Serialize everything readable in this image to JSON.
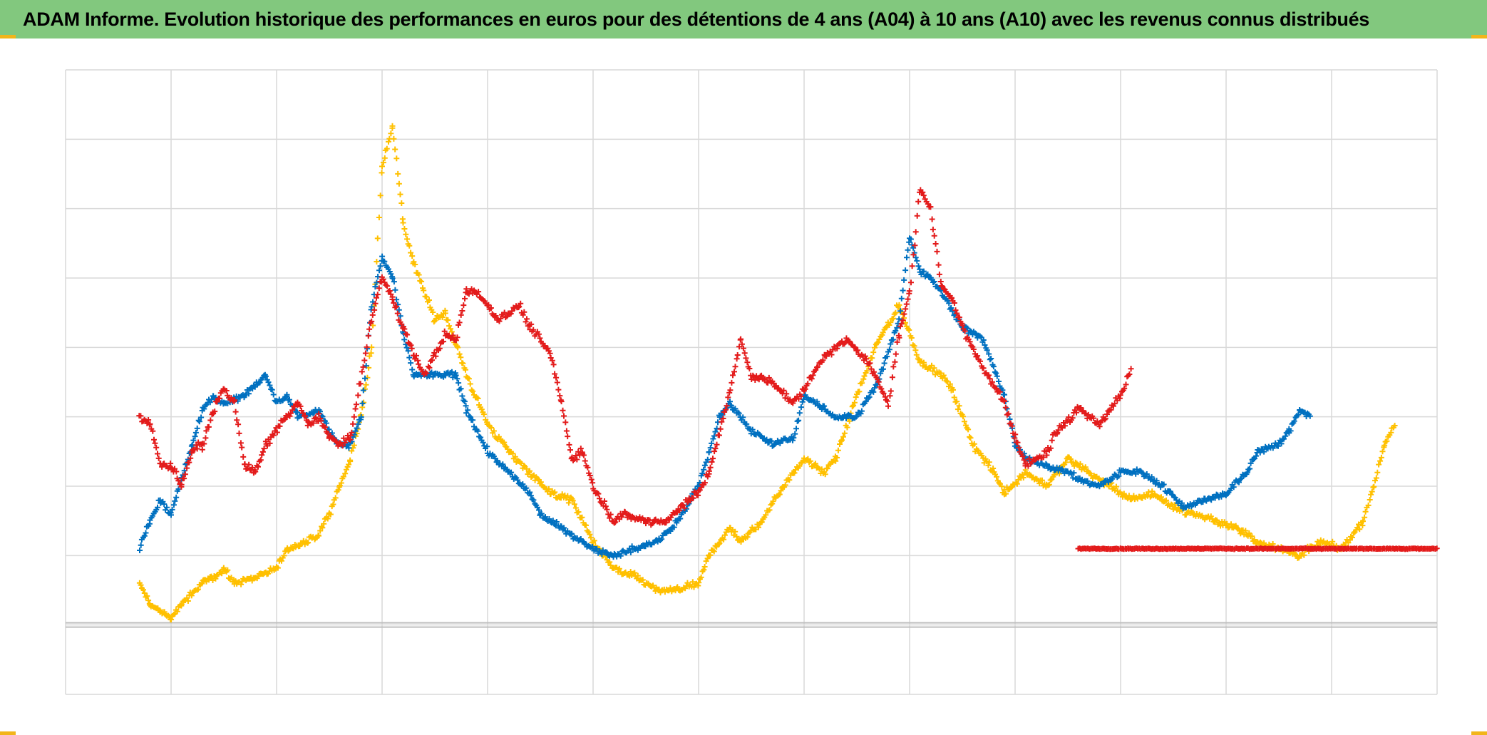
{
  "title": "ADAM Informe. Evolution historique des performances en euros pour des détentions de 4 ans (A04) à 10 ans (A10) avec les revenus connus distribués",
  "colors": {
    "title_bar": "#82c87e",
    "corner_accent": "#f2b51a",
    "grid": "#d9d9d9",
    "baseline": "#bfbfbf"
  },
  "chart_data": {
    "type": "scatter",
    "title": "ADAM Informe. Evolution historique des performances en euros pour des détentions de 4 ans (A04) à 10 ans (A10) avec les revenus connus distribués",
    "xlabel": "",
    "ylabel": "",
    "xlim": [
      0,
      13
    ],
    "ylim": [
      -1,
      8
    ],
    "x_gridlines": 13,
    "y_gridlines": 9,
    "grid": true,
    "tick_labels_shown": false,
    "legend": "none",
    "marker": "plus",
    "series": [
      {
        "color": "#ffc000",
        "noise": 0.07,
        "points": [
          [
            0.7,
            0.6
          ],
          [
            0.8,
            0.3
          ],
          [
            0.9,
            0.2
          ],
          [
            1.0,
            0.1
          ],
          [
            1.1,
            0.3
          ],
          [
            1.3,
            0.6
          ],
          [
            1.5,
            0.8
          ],
          [
            1.6,
            0.6
          ],
          [
            1.8,
            0.7
          ],
          [
            2.0,
            0.8
          ],
          [
            2.1,
            1.1
          ],
          [
            2.3,
            1.2
          ],
          [
            2.4,
            1.3
          ],
          [
            2.5,
            1.6
          ],
          [
            2.6,
            2.0
          ],
          [
            2.7,
            2.4
          ],
          [
            2.8,
            3.0
          ],
          [
            2.9,
            4.0
          ],
          [
            3.0,
            6.6
          ],
          [
            3.1,
            7.2
          ],
          [
            3.2,
            5.8
          ],
          [
            3.3,
            5.2
          ],
          [
            3.5,
            4.4
          ],
          [
            3.6,
            4.5
          ],
          [
            3.8,
            3.6
          ],
          [
            4.0,
            2.9
          ],
          [
            4.2,
            2.5
          ],
          [
            4.4,
            2.2
          ],
          [
            4.6,
            1.9
          ],
          [
            4.8,
            1.8
          ],
          [
            5.0,
            1.2
          ],
          [
            5.2,
            0.8
          ],
          [
            5.4,
            0.7
          ],
          [
            5.6,
            0.5
          ],
          [
            5.8,
            0.5
          ],
          [
            6.0,
            0.6
          ],
          [
            6.1,
            1.0
          ],
          [
            6.2,
            1.2
          ],
          [
            6.3,
            1.4
          ],
          [
            6.4,
            1.2
          ],
          [
            6.6,
            1.5
          ],
          [
            6.8,
            2.0
          ],
          [
            7.0,
            2.4
          ],
          [
            7.2,
            2.2
          ],
          [
            7.3,
            2.4
          ],
          [
            7.5,
            3.3
          ],
          [
            7.7,
            4.1
          ],
          [
            7.9,
            4.6
          ],
          [
            8.1,
            3.8
          ],
          [
            8.3,
            3.6
          ],
          [
            8.4,
            3.4
          ],
          [
            8.6,
            2.6
          ],
          [
            8.8,
            2.2
          ],
          [
            8.9,
            1.9
          ],
          [
            9.1,
            2.2
          ],
          [
            9.3,
            2.0
          ],
          [
            9.5,
            2.4
          ],
          [
            9.7,
            2.2
          ],
          [
            9.9,
            2.0
          ],
          [
            10.1,
            1.8
          ],
          [
            10.3,
            1.9
          ],
          [
            10.5,
            1.7
          ],
          [
            10.7,
            1.6
          ],
          [
            10.9,
            1.5
          ],
          [
            11.1,
            1.4
          ],
          [
            11.3,
            1.2
          ],
          [
            11.5,
            1.1
          ],
          [
            11.7,
            1.0
          ],
          [
            11.9,
            1.2
          ],
          [
            12.1,
            1.1
          ],
          [
            12.3,
            1.5
          ],
          [
            12.4,
            2.0
          ],
          [
            12.5,
            2.6
          ],
          [
            12.6,
            2.9
          ]
        ]
      },
      {
        "color": "#0070c0",
        "noise": 0.06,
        "points": [
          [
            0.7,
            1.1
          ],
          [
            0.8,
            1.5
          ],
          [
            0.9,
            1.8
          ],
          [
            1.0,
            1.6
          ],
          [
            1.1,
            2.1
          ],
          [
            1.2,
            2.6
          ],
          [
            1.3,
            3.1
          ],
          [
            1.4,
            3.3
          ],
          [
            1.5,
            3.2
          ],
          [
            1.7,
            3.3
          ],
          [
            1.9,
            3.6
          ],
          [
            2.0,
            3.2
          ],
          [
            2.1,
            3.3
          ],
          [
            2.2,
            3.0
          ],
          [
            2.4,
            3.1
          ],
          [
            2.5,
            2.8
          ],
          [
            2.6,
            2.6
          ],
          [
            2.7,
            2.6
          ],
          [
            2.8,
            3.0
          ],
          [
            2.9,
            4.6
          ],
          [
            3.0,
            5.3
          ],
          [
            3.1,
            5.0
          ],
          [
            3.2,
            4.2
          ],
          [
            3.3,
            3.6
          ],
          [
            3.4,
            3.6
          ],
          [
            3.6,
            3.6
          ],
          [
            3.7,
            3.6
          ],
          [
            3.8,
            3.1
          ],
          [
            4.0,
            2.5
          ],
          [
            4.2,
            2.2
          ],
          [
            4.4,
            1.9
          ],
          [
            4.5,
            1.6
          ],
          [
            4.7,
            1.4
          ],
          [
            4.8,
            1.3
          ],
          [
            5.0,
            1.1
          ],
          [
            5.2,
            1.0
          ],
          [
            5.4,
            1.1
          ],
          [
            5.6,
            1.2
          ],
          [
            5.8,
            1.5
          ],
          [
            6.0,
            2.0
          ],
          [
            6.1,
            2.5
          ],
          [
            6.2,
            3.0
          ],
          [
            6.3,
            3.2
          ],
          [
            6.5,
            2.8
          ],
          [
            6.7,
            2.6
          ],
          [
            6.9,
            2.7
          ],
          [
            7.0,
            3.3
          ],
          [
            7.2,
            3.1
          ],
          [
            7.3,
            3.0
          ],
          [
            7.5,
            3.0
          ],
          [
            7.7,
            3.5
          ],
          [
            7.9,
            4.4
          ],
          [
            8.0,
            5.6
          ],
          [
            8.1,
            5.1
          ],
          [
            8.2,
            5.0
          ],
          [
            8.3,
            4.8
          ],
          [
            8.5,
            4.3
          ],
          [
            8.7,
            4.1
          ],
          [
            8.9,
            3.3
          ],
          [
            9.0,
            2.6
          ],
          [
            9.1,
            2.4
          ],
          [
            9.3,
            2.3
          ],
          [
            9.5,
            2.2
          ],
          [
            9.6,
            2.1
          ],
          [
            9.8,
            2.0
          ],
          [
            10.0,
            2.2
          ],
          [
            10.2,
            2.2
          ],
          [
            10.4,
            2.0
          ],
          [
            10.6,
            1.7
          ],
          [
            10.8,
            1.8
          ],
          [
            11.0,
            1.9
          ],
          [
            11.2,
            2.2
          ],
          [
            11.3,
            2.5
          ],
          [
            11.5,
            2.6
          ],
          [
            11.6,
            2.8
          ],
          [
            11.7,
            3.1
          ],
          [
            11.8,
            3.0
          ]
        ]
      },
      {
        "color": "#e31b1b",
        "noise": 0.08,
        "points": [
          [
            0.7,
            3.0
          ],
          [
            0.8,
            2.9
          ],
          [
            0.9,
            2.3
          ],
          [
            1.0,
            2.3
          ],
          [
            1.1,
            2.0
          ],
          [
            1.2,
            2.5
          ],
          [
            1.3,
            2.6
          ],
          [
            1.4,
            3.1
          ],
          [
            1.5,
            3.4
          ],
          [
            1.6,
            3.2
          ],
          [
            1.7,
            2.3
          ],
          [
            1.8,
            2.2
          ],
          [
            1.9,
            2.6
          ],
          [
            2.1,
            3.0
          ],
          [
            2.2,
            3.2
          ],
          [
            2.3,
            2.9
          ],
          [
            2.4,
            3.0
          ],
          [
            2.5,
            2.7
          ],
          [
            2.6,
            2.6
          ],
          [
            2.7,
            2.7
          ],
          [
            2.9,
            4.4
          ],
          [
            3.0,
            5.0
          ],
          [
            3.1,
            4.7
          ],
          [
            3.2,
            4.3
          ],
          [
            3.3,
            3.9
          ],
          [
            3.4,
            3.6
          ],
          [
            3.6,
            4.2
          ],
          [
            3.7,
            4.1
          ],
          [
            3.8,
            4.8
          ],
          [
            3.9,
            4.8
          ],
          [
            4.1,
            4.4
          ],
          [
            4.3,
            4.6
          ],
          [
            4.4,
            4.3
          ],
          [
            4.6,
            3.9
          ],
          [
            4.7,
            3.2
          ],
          [
            4.8,
            2.4
          ],
          [
            4.9,
            2.5
          ],
          [
            5.0,
            2.0
          ],
          [
            5.2,
            1.5
          ],
          [
            5.3,
            1.6
          ],
          [
            5.5,
            1.5
          ],
          [
            5.7,
            1.5
          ],
          [
            5.9,
            1.8
          ],
          [
            6.0,
            1.9
          ],
          [
            6.1,
            2.2
          ],
          [
            6.3,
            3.4
          ],
          [
            6.4,
            4.1
          ],
          [
            6.5,
            3.6
          ],
          [
            6.7,
            3.5
          ],
          [
            6.9,
            3.2
          ],
          [
            7.0,
            3.4
          ],
          [
            7.2,
            3.9
          ],
          [
            7.4,
            4.1
          ],
          [
            7.6,
            3.8
          ],
          [
            7.8,
            3.2
          ],
          [
            7.9,
            4.2
          ],
          [
            8.0,
            4.8
          ],
          [
            8.1,
            6.3
          ],
          [
            8.2,
            6.0
          ],
          [
            8.3,
            4.9
          ],
          [
            8.4,
            4.7
          ],
          [
            8.5,
            4.3
          ],
          [
            8.7,
            3.7
          ],
          [
            8.9,
            3.2
          ],
          [
            9.0,
            2.7
          ],
          [
            9.1,
            2.3
          ],
          [
            9.3,
            2.5
          ],
          [
            9.4,
            2.8
          ],
          [
            9.6,
            3.1
          ],
          [
            9.8,
            2.9
          ],
          [
            10.0,
            3.3
          ],
          [
            10.1,
            3.7
          ]
        ]
      },
      {
        "color": "#e31b1b",
        "noise": 0.01,
        "points": [
          [
            9.6,
            1.1
          ],
          [
            10.2,
            1.1
          ],
          [
            10.8,
            1.1
          ],
          [
            11.4,
            1.1
          ],
          [
            12.0,
            1.1
          ],
          [
            12.6,
            1.1
          ],
          [
            13.0,
            1.1
          ]
        ]
      }
    ]
  }
}
